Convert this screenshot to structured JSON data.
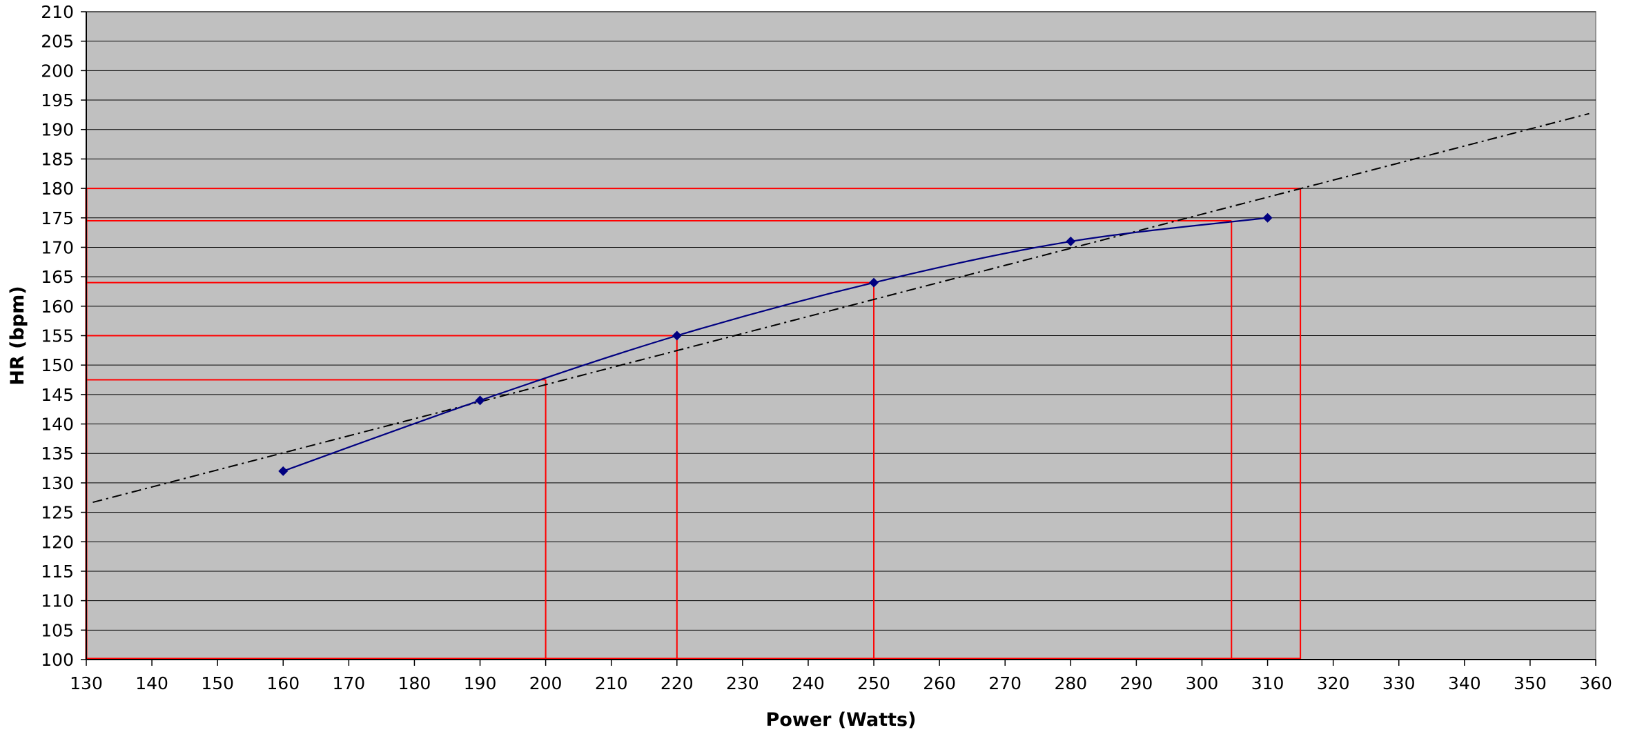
{
  "chart_data": {
    "type": "line",
    "title": "",
    "xlabel": "Power (Watts)",
    "ylabel": "HR (bpm)",
    "xlim": [
      130,
      360
    ],
    "ylim": [
      100,
      210
    ],
    "x_ticks": [
      130,
      140,
      150,
      160,
      170,
      180,
      190,
      200,
      210,
      220,
      230,
      240,
      250,
      260,
      270,
      280,
      290,
      300,
      310,
      320,
      330,
      340,
      350,
      360
    ],
    "y_ticks": [
      100,
      105,
      110,
      115,
      120,
      125,
      130,
      135,
      140,
      145,
      150,
      155,
      160,
      165,
      170,
      175,
      180,
      185,
      190,
      195,
      200,
      205,
      210
    ],
    "grid": "horizontal",
    "legend": "none",
    "colors": {
      "plot_background": "#c0c0c0",
      "gridline": "#000000",
      "series": "#000080",
      "trendline": "#000000",
      "reference_lines": "#ff0000"
    },
    "series": [
      {
        "values": [
          [
            160,
            132
          ],
          [
            190,
            144
          ],
          [
            220,
            155
          ],
          [
            250,
            164
          ],
          [
            280,
            171
          ],
          [
            310,
            175
          ]
        ],
        "marker": "diamond",
        "line": "smooth"
      }
    ],
    "trendline": {
      "style": "dash-dot",
      "points": [
        [
          131,
          126.7
        ],
        [
          359,
          192.7
        ]
      ]
    },
    "reference_lines": [
      {
        "x": 200,
        "y": 147.5
      },
      {
        "x": 220,
        "y": 155
      },
      {
        "x": 250,
        "y": 164
      },
      {
        "x": 304.5,
        "y": 174.5
      },
      {
        "x": 315,
        "y": 180
      }
    ]
  }
}
